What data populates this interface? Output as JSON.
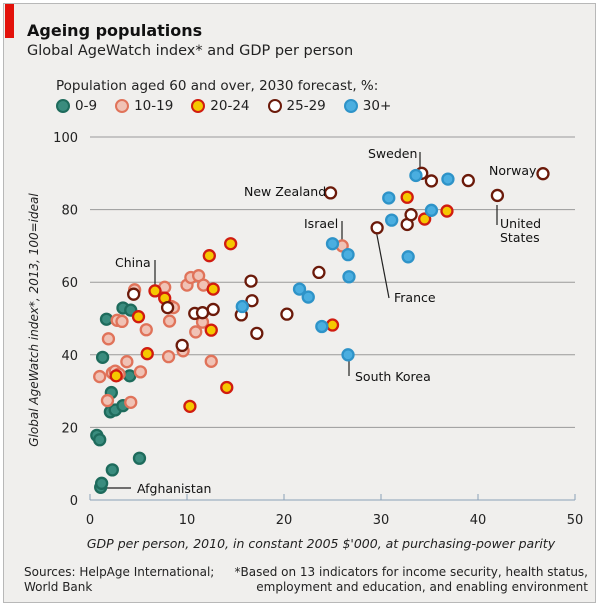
{
  "header": {
    "title": "Ageing populations",
    "subtitle": "Global AgeWatch index* and GDP per person"
  },
  "legend": {
    "title": "Population aged 60 and over, 2030 forecast, %:",
    "items": [
      {
        "key": "g1",
        "label": "0-9",
        "fill": "#3a8c7e",
        "stroke": "#1e6b5c"
      },
      {
        "key": "g2",
        "label": "10-19",
        "fill": "#f0c2b5",
        "stroke": "#e0735a"
      },
      {
        "key": "g3",
        "label": "20-24",
        "fill": "#f5c800",
        "stroke": "#d01c10"
      },
      {
        "key": "g4",
        "label": "25-29",
        "fill": "#ffffff",
        "stroke": "#6b1a0a"
      },
      {
        "key": "g5",
        "label": "30+",
        "fill": "#4aaee0",
        "stroke": "#2e93c8"
      }
    ]
  },
  "footer": {
    "sources_line1": "Sources: HelpAge International;",
    "sources_line2": "World Bank",
    "note_line1": "*Based on 13 indicators for income security, health status,",
    "note_line2": "employment and education, and enabling environment"
  },
  "chart_data": {
    "type": "scatter",
    "title": "Ageing populations",
    "subtitle": "Global AgeWatch index* and GDP per person",
    "xlabel": "GDP per person, 2010, in constant 2005 $'000, at purchasing-power parity",
    "ylabel": "Global AgeWatch index*, 2013, 100=ideal",
    "xlim": [
      0,
      50
    ],
    "ylim": [
      0,
      100
    ],
    "xticks": [
      0,
      10,
      20,
      30,
      40,
      50
    ],
    "yticks": [
      0,
      20,
      40,
      60,
      80,
      100
    ],
    "grid": "horizontal",
    "legend_position": "top-left",
    "series": [
      {
        "name": "0-9",
        "key": "g1",
        "points": [
          [
            1.1,
            3.5
          ],
          [
            1.2,
            4.6
          ],
          [
            2.3,
            8.3
          ],
          [
            5.1,
            11.5
          ],
          [
            0.7,
            17.8
          ],
          [
            1.0,
            16.6
          ],
          [
            2.1,
            24.3
          ],
          [
            2.6,
            24.8
          ],
          [
            3.4,
            26.0
          ],
          [
            2.2,
            29.6
          ],
          [
            1.3,
            39.3
          ],
          [
            4.1,
            34.2
          ],
          [
            1.7,
            49.8
          ],
          [
            3.4,
            52.9
          ],
          [
            4.2,
            52.3
          ]
        ]
      },
      {
        "name": "10-19",
        "key": "g2",
        "points": [
          [
            1.0,
            34.0
          ],
          [
            2.3,
            35.0
          ],
          [
            2.6,
            35.5
          ],
          [
            3.0,
            34.7
          ],
          [
            3.8,
            38.1
          ],
          [
            5.2,
            35.3
          ],
          [
            1.8,
            27.4
          ],
          [
            4.2,
            26.9
          ],
          [
            1.9,
            44.4
          ],
          [
            2.8,
            49.5
          ],
          [
            3.3,
            49.2
          ],
          [
            5.8,
            46.9
          ],
          [
            4.6,
            57.9
          ],
          [
            7.7,
            58.6
          ],
          [
            8.4,
            53.3
          ],
          [
            8.2,
            49.3
          ],
          [
            8.1,
            39.5
          ],
          [
            9.6,
            41.1
          ],
          [
            10.0,
            59.2
          ],
          [
            10.4,
            61.3
          ],
          [
            10.9,
            46.3
          ],
          [
            11.2,
            61.8
          ],
          [
            11.7,
            59.2
          ],
          [
            11.6,
            49.0
          ],
          [
            12.5,
            38.2
          ],
          [
            8.6,
            53.0
          ],
          [
            26.0,
            70.0
          ]
        ]
      },
      {
        "name": "20-24",
        "key": "g3",
        "points": [
          [
            2.7,
            34.2
          ],
          [
            5.0,
            50.5
          ],
          [
            5.9,
            40.3
          ],
          [
            6.7,
            57.6
          ],
          [
            7.7,
            55.6
          ],
          [
            10.3,
            25.8
          ],
          [
            12.3,
            67.3
          ],
          [
            12.7,
            58.1
          ],
          [
            12.5,
            46.8
          ],
          [
            14.5,
            70.6
          ],
          [
            14.1,
            31.0
          ],
          [
            25.0,
            48.2
          ],
          [
            32.7,
            83.4
          ],
          [
            34.5,
            77.4
          ],
          [
            36.8,
            79.6
          ]
        ]
      },
      {
        "name": "25-29",
        "key": "g4",
        "points": [
          [
            4.5,
            56.7
          ],
          [
            8.0,
            53.0
          ],
          [
            9.5,
            42.6
          ],
          [
            10.8,
            51.4
          ],
          [
            11.6,
            51.6
          ],
          [
            12.7,
            52.5
          ],
          [
            15.6,
            51.0
          ],
          [
            16.6,
            60.3
          ],
          [
            16.7,
            54.9
          ],
          [
            17.2,
            45.9
          ],
          [
            20.3,
            51.2
          ],
          [
            23.6,
            62.7
          ],
          [
            24.8,
            84.6
          ],
          [
            29.6,
            75.0
          ],
          [
            32.7,
            75.9
          ],
          [
            33.1,
            78.6
          ],
          [
            34.2,
            90.0
          ],
          [
            35.2,
            87.9
          ],
          [
            39.0,
            88.0
          ],
          [
            42.0,
            83.9
          ],
          [
            46.7,
            89.9
          ]
        ]
      },
      {
        "name": "30+",
        "key": "g5",
        "points": [
          [
            15.7,
            53.3
          ],
          [
            21.6,
            58.1
          ],
          [
            22.5,
            55.9
          ],
          [
            23.9,
            47.8
          ],
          [
            25.0,
            70.6
          ],
          [
            26.6,
            67.6
          ],
          [
            26.7,
            61.5
          ],
          [
            26.6,
            40.0
          ],
          [
            30.8,
            83.2
          ],
          [
            31.1,
            77.1
          ],
          [
            32.8,
            67.0
          ],
          [
            33.6,
            89.4
          ],
          [
            35.2,
            79.8
          ],
          [
            36.9,
            88.4
          ]
        ]
      }
    ],
    "annotations": [
      {
        "label": "Sweden",
        "x": 34.2,
        "y": 90.0
      },
      {
        "label": "Norway",
        "x": 46.7,
        "y": 89.9
      },
      {
        "label": "New Zealand",
        "x": 24.8,
        "y": 84.6
      },
      {
        "label": "Israel",
        "x": 26.0,
        "y": 70.0
      },
      {
        "label": "United States",
        "x": 42.0,
        "y": 83.9
      },
      {
        "label": "France",
        "x": 29.6,
        "y": 75.0
      },
      {
        "label": "China",
        "x": 6.7,
        "y": 57.6
      },
      {
        "label": "South Korea",
        "x": 26.6,
        "y": 40.0
      },
      {
        "label": "Afghanistan",
        "x": 1.1,
        "y": 3.5
      }
    ]
  }
}
